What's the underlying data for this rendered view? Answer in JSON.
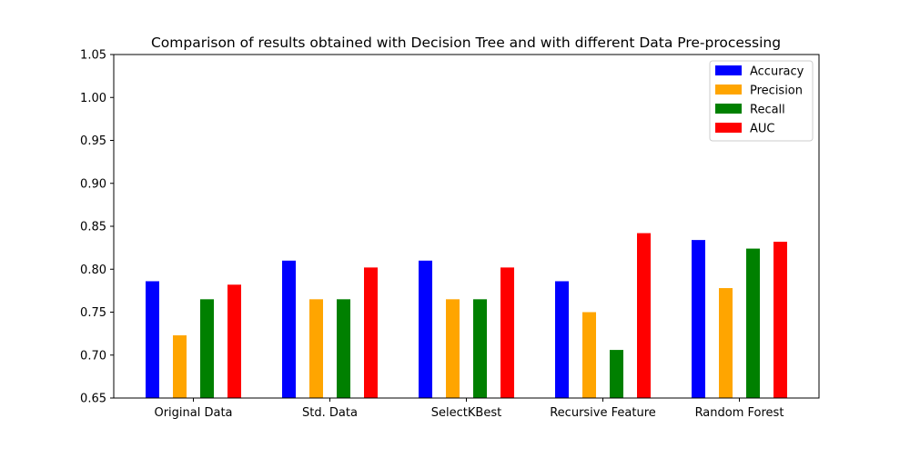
{
  "chart_data": {
    "type": "bar",
    "title": "Comparison of results obtained with Decision Tree and with different Data Pre-processing",
    "xlabel": "",
    "ylabel": "",
    "categories": [
      "Original Data",
      "Std. Data",
      "SelectKBest",
      "Recursive Feature",
      "Random Forest"
    ],
    "series": [
      {
        "name": "Accuracy",
        "color": "#0000ff",
        "values": [
          0.786,
          0.81,
          0.81,
          0.786,
          0.834
        ]
      },
      {
        "name": "Precision",
        "color": "#ffa500",
        "values": [
          0.723,
          0.765,
          0.765,
          0.75,
          0.778
        ]
      },
      {
        "name": "Recall",
        "color": "#008000",
        "values": [
          0.765,
          0.765,
          0.765,
          0.706,
          0.824
        ]
      },
      {
        "name": "AUC",
        "color": "#ff0000",
        "values": [
          0.782,
          0.802,
          0.802,
          0.842,
          0.832
        ]
      }
    ],
    "ylim": [
      0.65,
      1.05
    ],
    "yticks": [
      "0.65",
      "0.70",
      "0.75",
      "0.80",
      "0.85",
      "0.90",
      "0.95",
      "1.00",
      "1.05"
    ],
    "grid": false,
    "legend_position": "top-right"
  }
}
